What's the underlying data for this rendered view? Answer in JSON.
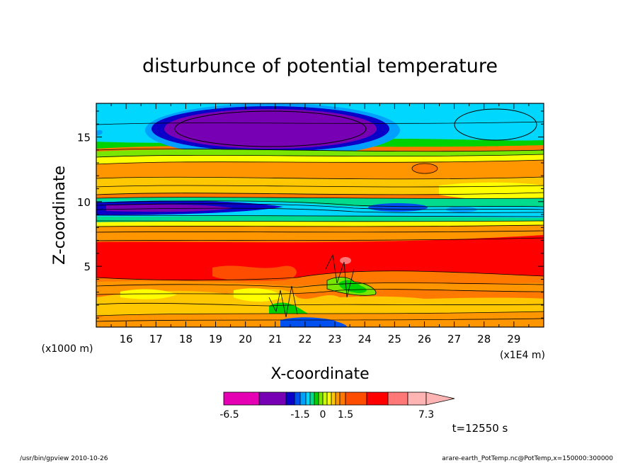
{
  "chart_data": {
    "type": "heatmap",
    "title": "disturbunce of potential temperature",
    "xlabel": "X-coordinate",
    "ylabel": "Z-coordinate",
    "x_unit": "(x1E4 m)",
    "y_unit": "(x1000 m)",
    "xlim": [
      15,
      30
    ],
    "ylim": [
      0.3,
      17.6
    ],
    "x_ticks": [
      16,
      17,
      18,
      19,
      20,
      21,
      22,
      23,
      24,
      25,
      26,
      27,
      28,
      29
    ],
    "y_ticks": [
      5,
      10,
      15
    ],
    "x_tick_labels": [
      "16",
      "17",
      "18",
      "19",
      "20",
      "21",
      "22",
      "23",
      "24",
      "25",
      "26",
      "27",
      "28",
      "29"
    ],
    "y_tick_labels": [
      "5",
      "10",
      "15"
    ],
    "colorbar": {
      "levels": [
        -6.5,
        -5,
        -3.5,
        -2.5,
        -1.5,
        -1.2,
        -0.9,
        -0.6,
        -0.3,
        0,
        0.3,
        0.6,
        0.9,
        1.2,
        1.5,
        2.5,
        3.5,
        5,
        7.3
      ],
      "colors": [
        "#e600b4",
        "#7800b4",
        "#0a00c8",
        "#0050f0",
        "#00a0ff",
        "#00d7ff",
        "#00dc8c",
        "#00d200",
        "#78e600",
        "#c8ff00",
        "#ffff00",
        "#ffc800",
        "#ff9600",
        "#ff7800",
        "#ff4d00",
        "#ff0000",
        "#ff7878",
        "#ffb4b4"
      ],
      "labels": [
        "-6.5",
        "-1.5",
        "0",
        "1.5",
        "7.3"
      ]
    },
    "series": [],
    "grid": false,
    "legend": "colorbar-bottom"
  },
  "annotations": {
    "time": "t=12550 s",
    "footer_left": "/usr/bin/gpview  2010-10-26",
    "footer_right": "arare-earth_PotTemp.nc@PotTemp,x=150000:300000"
  }
}
